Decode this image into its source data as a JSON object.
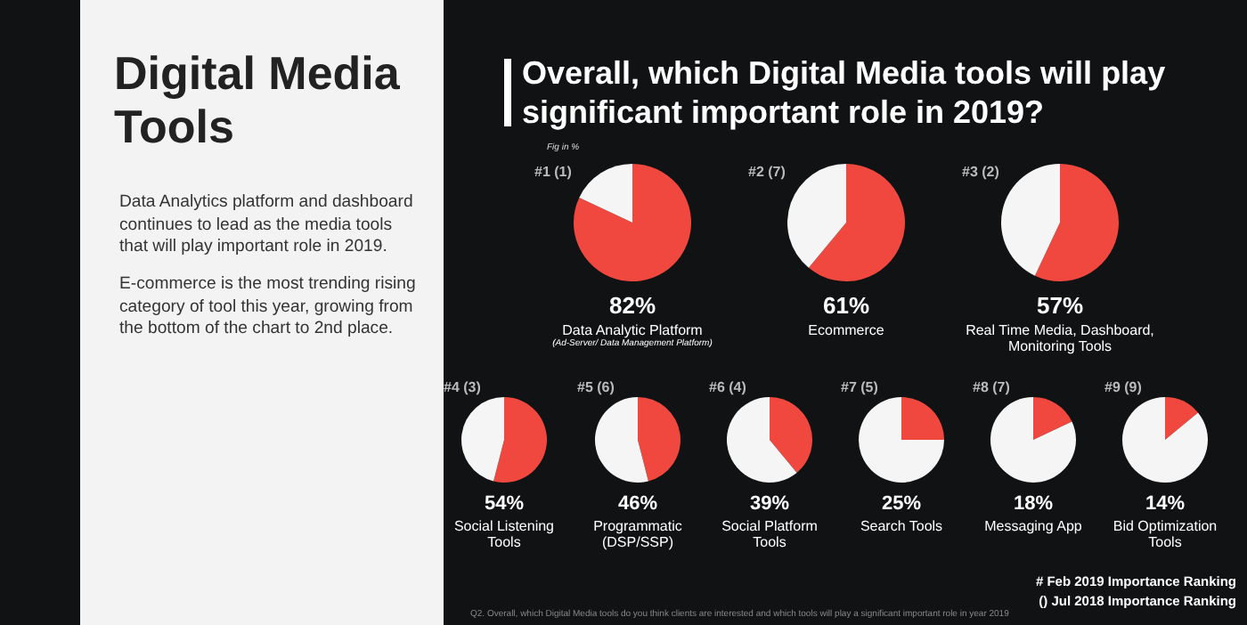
{
  "chart_data": [
    {
      "type": "other",
      "title": "Digital Media Tools",
      "annotations": [
        "Data Analytics platform and dashboard continues to lead as the media tools that will play important role in 2019.",
        "E-commerce is the most trending rising category of tool this year, growing from the bottom of the chart to 2nd place."
      ]
    },
    {
      "type": "other",
      "title": "Overall, which Digital Media tools will play significant important role in 2019?",
      "subtitle": "Fig in %",
      "annotations": [
        "# Feb 2019 Importance Ranking",
        "() Jul 2018 Importance Ranking",
        "Q2. Overall, which Digital Media tools do you think clients are interested and which tools will play a significant important role in year 2019"
      ]
    },
    {
      "type": "pie",
      "title": "#1 (1)",
      "subtitle": "Data Analytic Platform",
      "categories": [
        null,
        null
      ],
      "values": [
        82,
        18
      ],
      "colors": [
        "#f0483e",
        "#f5f5f5"
      ],
      "annotations": [
        "82%",
        "(Ad-Server/ Data Management Platform)"
      ]
    },
    {
      "type": "pie",
      "title": "#2 (7)",
      "subtitle": "Ecommerce",
      "categories": [
        null,
        null
      ],
      "values": [
        61,
        39
      ],
      "colors": [
        "#f0483e",
        "#f5f5f5"
      ],
      "annotations": [
        "61%"
      ]
    },
    {
      "type": "pie",
      "title": "#3 (2)",
      "subtitle": "Real Time Media, Dashboard, Monitoring Tools",
      "categories": [
        null,
        null
      ],
      "values": [
        57,
        43
      ],
      "colors": [
        "#f0483e",
        "#f5f5f5"
      ],
      "annotations": [
        "57%"
      ]
    },
    {
      "type": "pie",
      "title": "#4 (3)",
      "subtitle": "Social Listening Tools",
      "categories": [
        null,
        null
      ],
      "values": [
        54,
        46
      ],
      "colors": [
        "#f0483e",
        "#f5f5f5"
      ],
      "annotations": [
        "54%"
      ]
    },
    {
      "type": "pie",
      "title": "#5 (6)",
      "subtitle": "Programmatic (DSP/SSP)",
      "categories": [
        null,
        null
      ],
      "values": [
        46,
        54
      ],
      "colors": [
        "#f0483e",
        "#f5f5f5"
      ],
      "annotations": [
        "46%"
      ]
    },
    {
      "type": "pie",
      "title": "#6 (4)",
      "subtitle": "Social Platform Tools",
      "categories": [
        null,
        null
      ],
      "values": [
        39,
        61
      ],
      "colors": [
        "#f0483e",
        "#f5f5f5"
      ],
      "annotations": [
        "39%"
      ]
    },
    {
      "type": "pie",
      "title": "#7 (5)",
      "subtitle": "Search Tools",
      "categories": [
        null,
        null
      ],
      "values": [
        25,
        75
      ],
      "colors": [
        "#f0483e",
        "#f5f5f5"
      ],
      "annotations": [
        "25%"
      ]
    },
    {
      "type": "pie",
      "title": "#8 (7)",
      "subtitle": "Messaging App",
      "categories": [
        null,
        null
      ],
      "values": [
        18,
        82
      ],
      "colors": [
        "#f0483e",
        "#f5f5f5"
      ],
      "annotations": [
        "18%"
      ]
    },
    {
      "type": "pie",
      "title": "#9 (9)",
      "subtitle": "Bid Optimization Tools",
      "categories": [
        null,
        null
      ],
      "values": [
        14,
        86
      ],
      "colors": [
        "#f0483e",
        "#f5f5f5"
      ],
      "annotations": [
        "14%"
      ]
    }
  ]
}
